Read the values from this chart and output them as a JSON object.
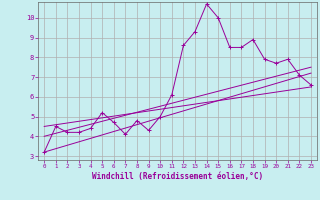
{
  "background_color": "#c8eef0",
  "line_color": "#990099",
  "grid_color": "#b0b0b0",
  "xlabel": "Windchill (Refroidissement éolien,°C)",
  "xlabel_color": "#990099",
  "xlim": [
    -0.5,
    23.5
  ],
  "ylim": [
    2.8,
    10.8
  ],
  "yticks": [
    3,
    4,
    5,
    6,
    7,
    8,
    9,
    10
  ],
  "xticks": [
    0,
    1,
    2,
    3,
    4,
    5,
    6,
    7,
    8,
    9,
    10,
    11,
    12,
    13,
    14,
    15,
    16,
    17,
    18,
    19,
    20,
    21,
    22,
    23
  ],
  "main_line": {
    "x": [
      0,
      1,
      2,
      3,
      4,
      5,
      6,
      7,
      8,
      9,
      10,
      11,
      12,
      13,
      14,
      15,
      16,
      17,
      18,
      19,
      20,
      21,
      22,
      23
    ],
    "y": [
      3.2,
      4.5,
      4.2,
      4.2,
      4.4,
      5.2,
      4.7,
      4.1,
      4.8,
      4.3,
      5.0,
      6.1,
      8.6,
      9.3,
      10.7,
      10.0,
      8.5,
      8.5,
      8.9,
      7.9,
      7.7,
      7.9,
      7.1,
      6.6
    ]
  },
  "trend_lines": [
    {
      "x": [
        0,
        23
      ],
      "y": [
        3.2,
        7.2
      ]
    },
    {
      "x": [
        0,
        23
      ],
      "y": [
        4.0,
        7.5
      ]
    },
    {
      "x": [
        0,
        23
      ],
      "y": [
        4.5,
        6.5
      ]
    }
  ]
}
